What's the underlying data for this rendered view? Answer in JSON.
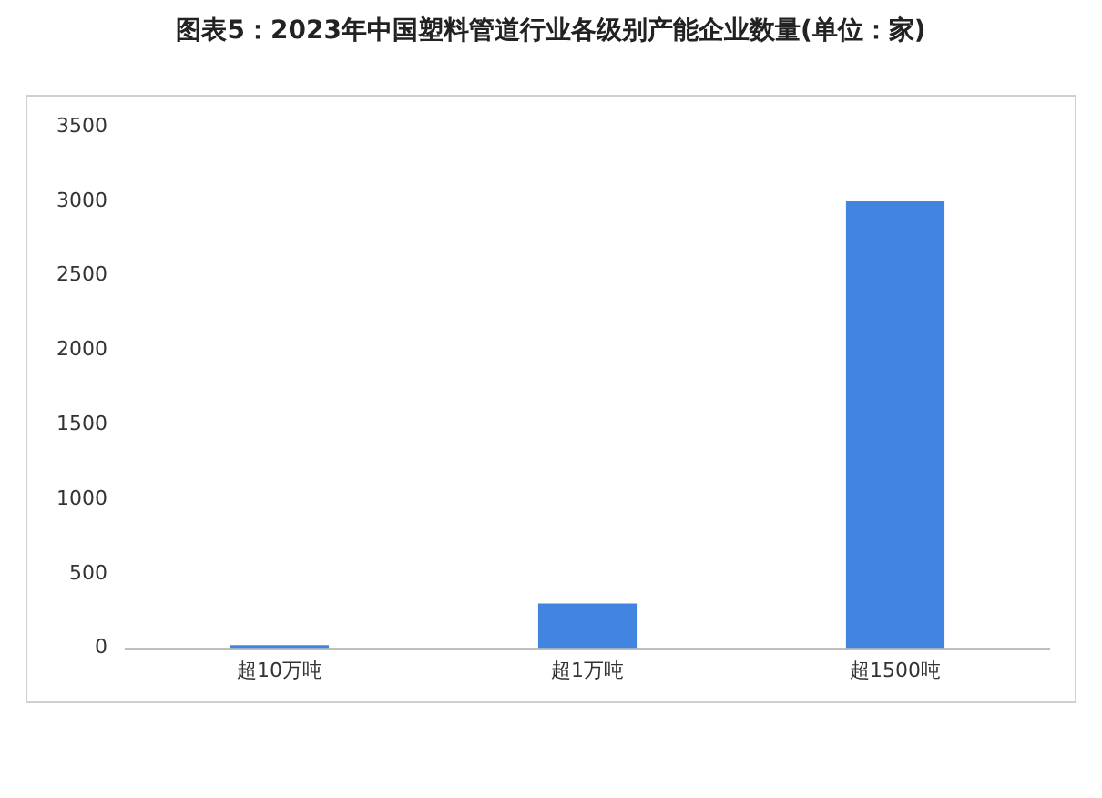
{
  "chart_data": {
    "type": "bar",
    "title": "图表5：2023年中国塑料管道行业各级别产能企业数量(单位：家)",
    "categories": [
      "超10万吨",
      "超1万吨",
      "超1500吨"
    ],
    "values": [
      20,
      300,
      3000
    ],
    "color": "#4285e0",
    "ylim": [
      0,
      3500
    ],
    "yticks": [
      0,
      500,
      1000,
      1500,
      2000,
      2500,
      3000,
      3500
    ],
    "grid": false,
    "legend": false
  }
}
